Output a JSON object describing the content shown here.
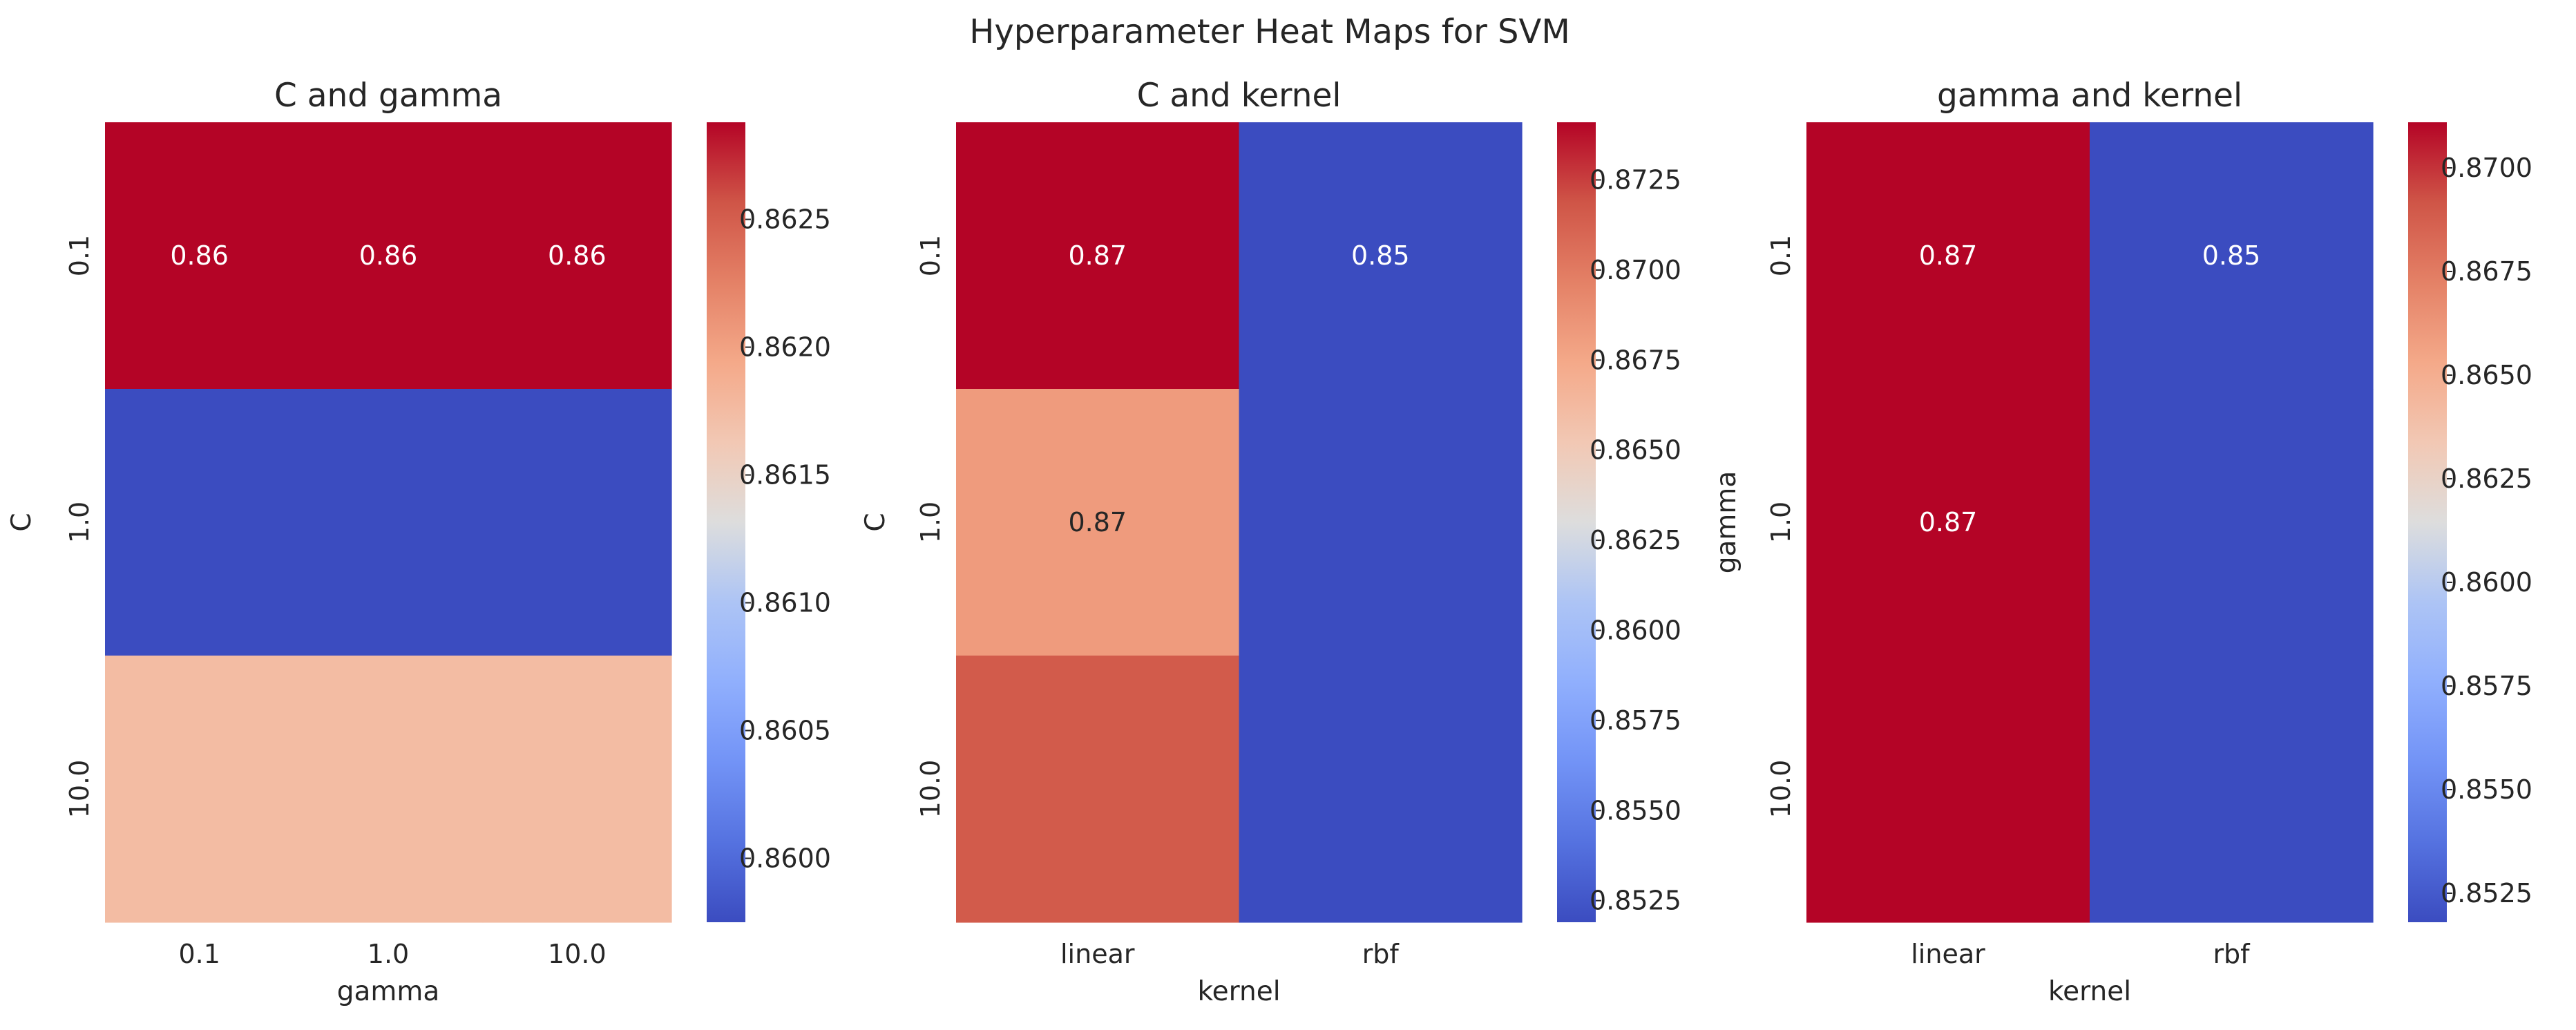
{
  "chart_data": {
    "title": "Hyperparameter Heat Maps for SVM",
    "colormap": "coolwarm",
    "charts": [
      {
        "type": "heatmap",
        "title": "C and gamma",
        "xlabel": "gamma",
        "ylabel": "C",
        "x": [
          "0.1",
          "1.0",
          "10.0"
        ],
        "y": [
          "0.1",
          "1.0",
          "10.0"
        ],
        "values": [
          [
            0.86288,
            0.86288,
            0.86288
          ],
          [
            0.85975,
            0.85975,
            0.85975
          ],
          [
            0.86175,
            0.86175,
            0.86175
          ]
        ],
        "annotations": [
          [
            "0.86",
            "0.86",
            "0.86"
          ],
          [
            "",
            "",
            ""
          ],
          [
            "",
            "",
            ""
          ]
        ],
        "vmin": 0.85975,
        "vmax": 0.86288,
        "colorbar_ticks": [
          "0.8600",
          "0.8605",
          "0.8610",
          "0.8615",
          "0.8620",
          "0.8625"
        ]
      },
      {
        "type": "heatmap",
        "title": "C and kernel",
        "xlabel": "kernel",
        "ylabel": "C",
        "x": [
          "linear",
          "rbf"
        ],
        "y": [
          "0.1",
          "1.0",
          "10.0"
        ],
        "values": [
          [
            0.8741,
            0.8519
          ],
          [
            0.8682,
            0.8519
          ],
          [
            0.8716,
            0.8519
          ]
        ],
        "annotations": [
          [
            "0.87",
            "0.85"
          ],
          [
            "0.87",
            ""
          ],
          [
            "",
            ""
          ]
        ],
        "vmin": 0.8519,
        "vmax": 0.8741,
        "colorbar_ticks": [
          "0.8525",
          "0.8550",
          "0.8575",
          "0.8600",
          "0.8625",
          "0.8650",
          "0.8675",
          "0.8700",
          "0.8725"
        ]
      },
      {
        "type": "heatmap",
        "title": "gamma and kernel",
        "xlabel": "kernel",
        "ylabel": "gamma",
        "x": [
          "linear",
          "rbf"
        ],
        "y": [
          "0.1",
          "1.0",
          "10.0"
        ],
        "values": [
          [
            0.8711,
            0.8518
          ],
          [
            0.8711,
            0.8518
          ],
          [
            0.8711,
            0.8518
          ]
        ],
        "annotations": [
          [
            "0.87",
            "0.85"
          ],
          [
            "0.87",
            ""
          ],
          [
            "",
            ""
          ]
        ],
        "vmin": 0.8518,
        "vmax": 0.8711,
        "colorbar_ticks": [
          "0.8525",
          "0.8550",
          "0.8575",
          "0.8600",
          "0.8625",
          "0.8650",
          "0.8675",
          "0.8700"
        ]
      }
    ]
  }
}
